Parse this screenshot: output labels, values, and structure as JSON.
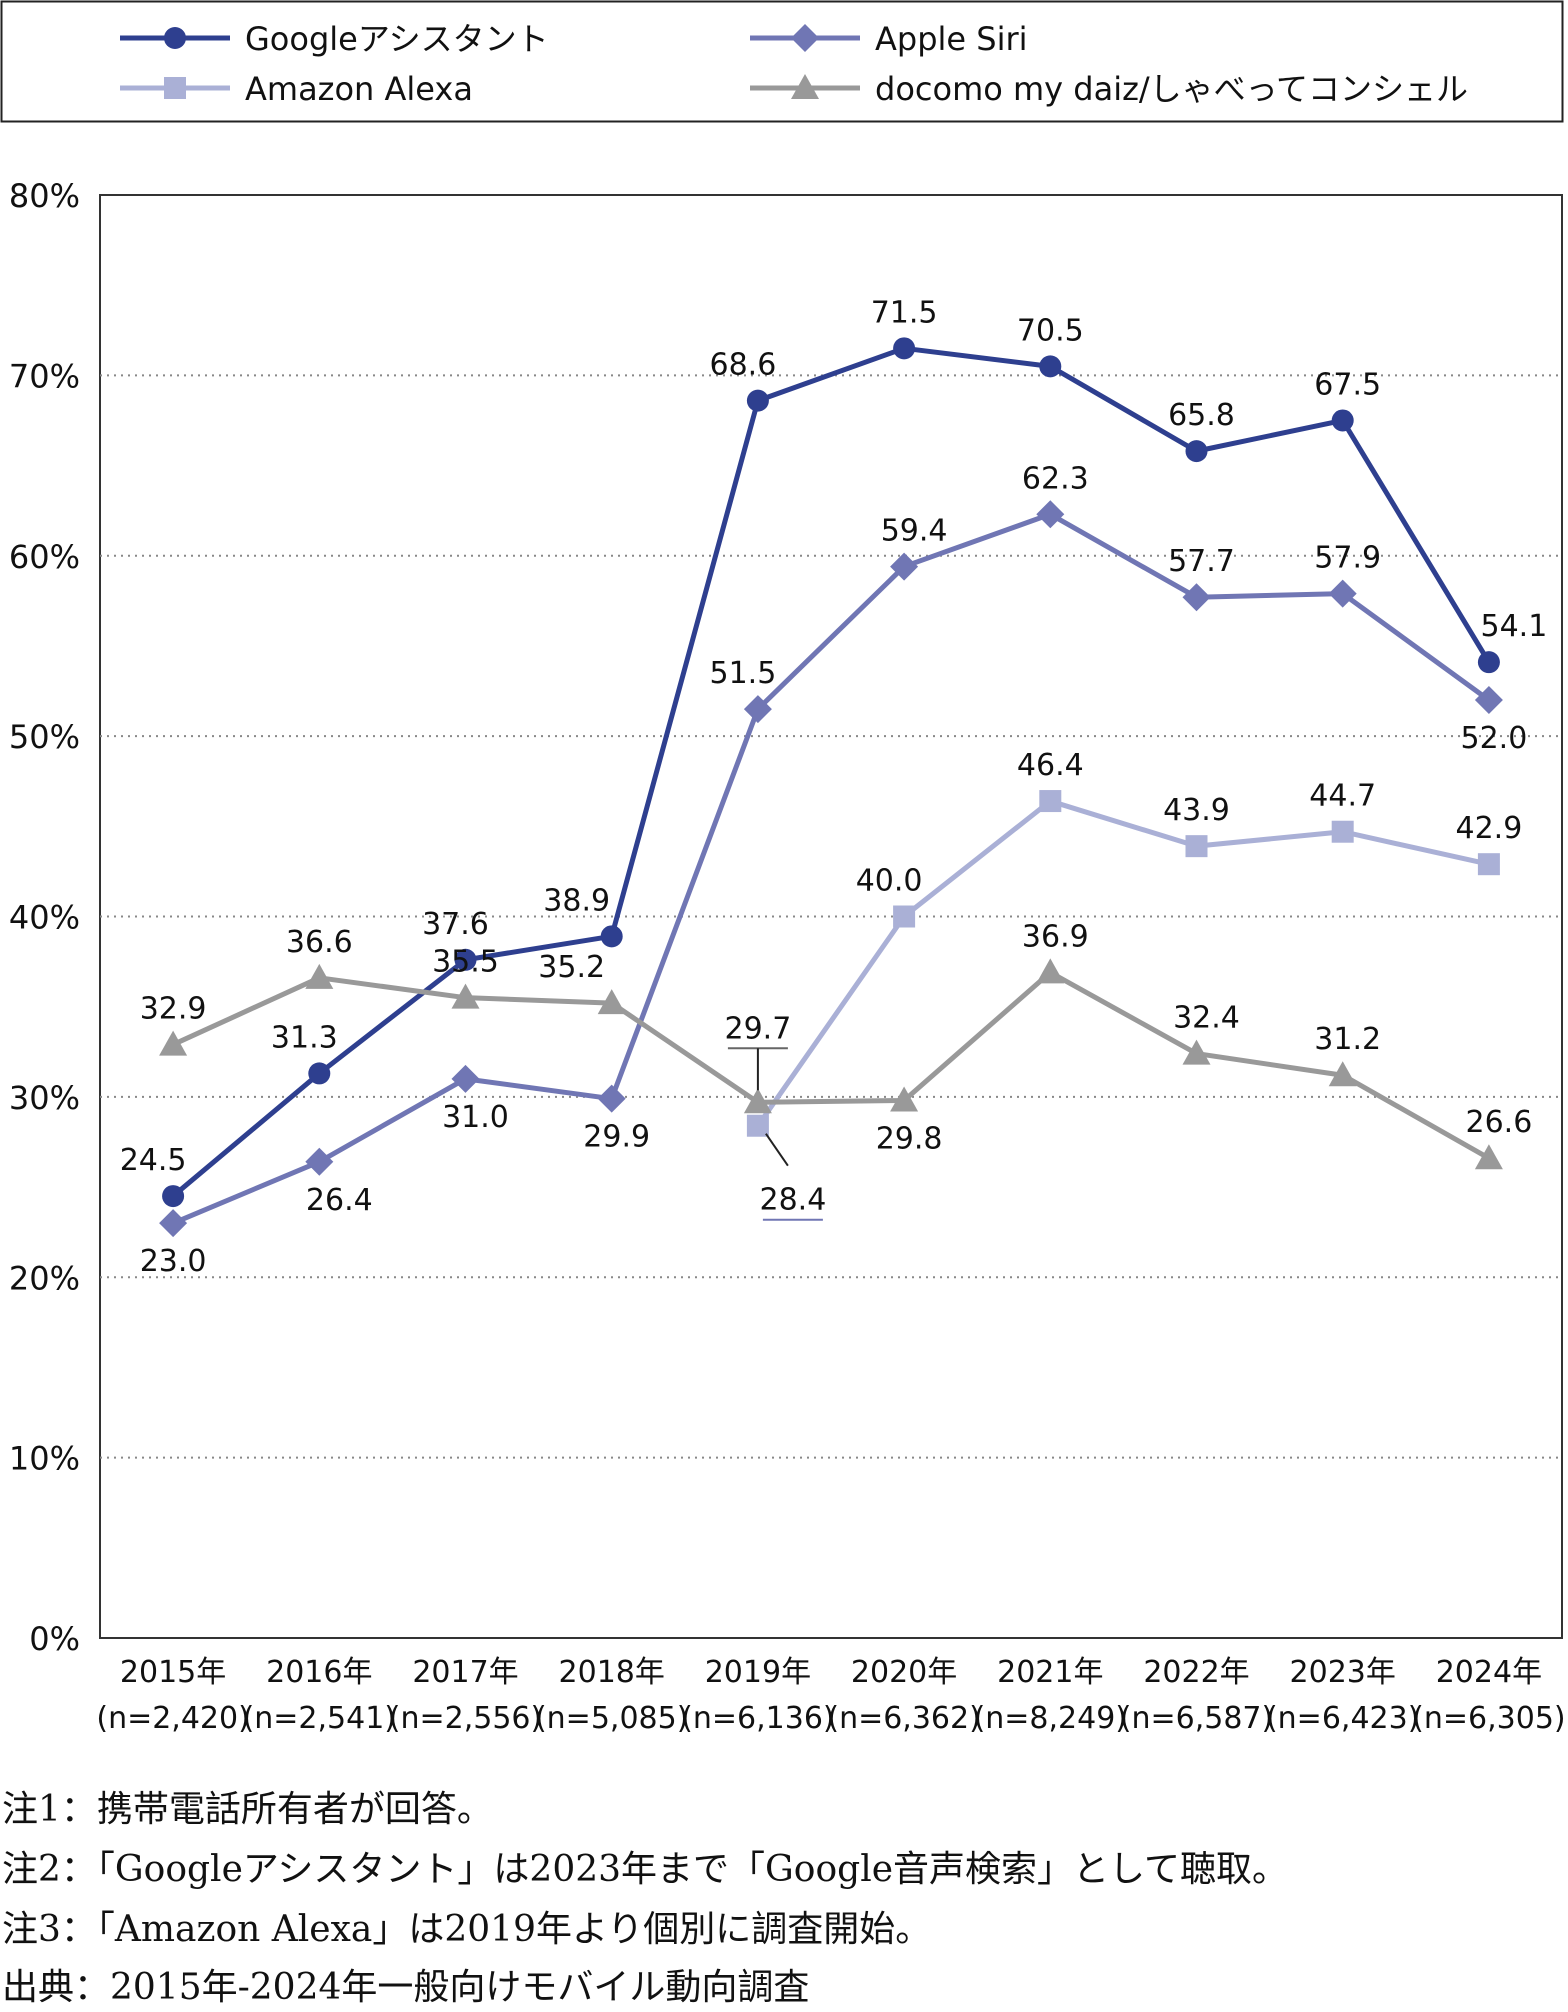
{
  "chart_data": {
    "type": "line",
    "categories": [
      "2015年",
      "2016年",
      "2017年",
      "2018年",
      "2019年",
      "2020年",
      "2021年",
      "2022年",
      "2023年",
      "2024年"
    ],
    "sample_sizes": [
      "(n=2,420)",
      "(n=2,541)",
      "(n=2,556)",
      "(n=5,085)",
      "(n=6,136)",
      "(n=6,362)",
      "(n=8,249)",
      "(n=6,587)",
      "(n=6,423)",
      "(n=6,305)"
    ],
    "y_tick_labels": [
      "0%",
      "10%",
      "20%",
      "30%",
      "40%",
      "50%",
      "60%",
      "70%",
      "80%"
    ],
    "ylim": [
      0,
      80
    ],
    "grid": true,
    "legend_position": "top",
    "series": [
      {
        "name": "Googleアシスタント",
        "color": "#2e3f8f",
        "marker": "circle",
        "values": [
          24.5,
          31.3,
          37.6,
          38.9,
          68.6,
          71.5,
          70.5,
          65.8,
          67.5,
          54.1
        ]
      },
      {
        "name": "Apple Siri",
        "color": "#7076b4",
        "marker": "diamond",
        "values": [
          23.0,
          26.4,
          31.0,
          29.9,
          51.5,
          59.4,
          62.3,
          57.7,
          57.9,
          52.0
        ]
      },
      {
        "name": "Amazon Alexa",
        "color": "#aab0d6",
        "marker": "square",
        "values": [
          null,
          null,
          null,
          null,
          28.4,
          40.0,
          46.4,
          43.9,
          44.7,
          42.9
        ]
      },
      {
        "name": "docomo my daiz/しゃべってコンシェル",
        "color": "#999999",
        "marker": "triangle",
        "values": [
          32.9,
          36.6,
          35.5,
          35.2,
          29.7,
          29.8,
          36.9,
          32.4,
          31.2,
          26.6
        ]
      }
    ]
  },
  "notes": [
    "注1：携帯電話所有者が回答。",
    "注2：「Googleアシスタント」は2023年まで「Google音声検索」として聴取。",
    "注3：「Amazon Alexa」は2019年より個別に調査開始。",
    "出典：2015年-2024年一般向けモバイル動向調査"
  ]
}
